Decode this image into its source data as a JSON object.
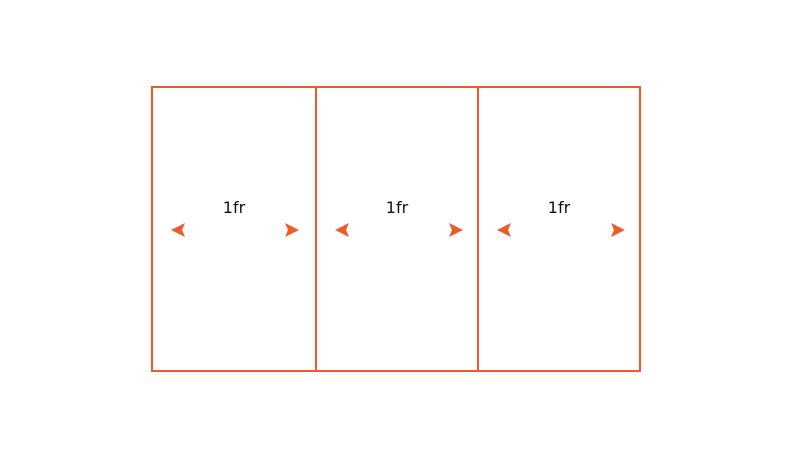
{
  "diagram": {
    "frame_color": "#f05a28",
    "arrow_gradient": [
      "#f05a28",
      "#f7941d"
    ],
    "columns": [
      {
        "label": "1fr"
      },
      {
        "label": "1fr"
      },
      {
        "label": "1fr"
      }
    ]
  }
}
